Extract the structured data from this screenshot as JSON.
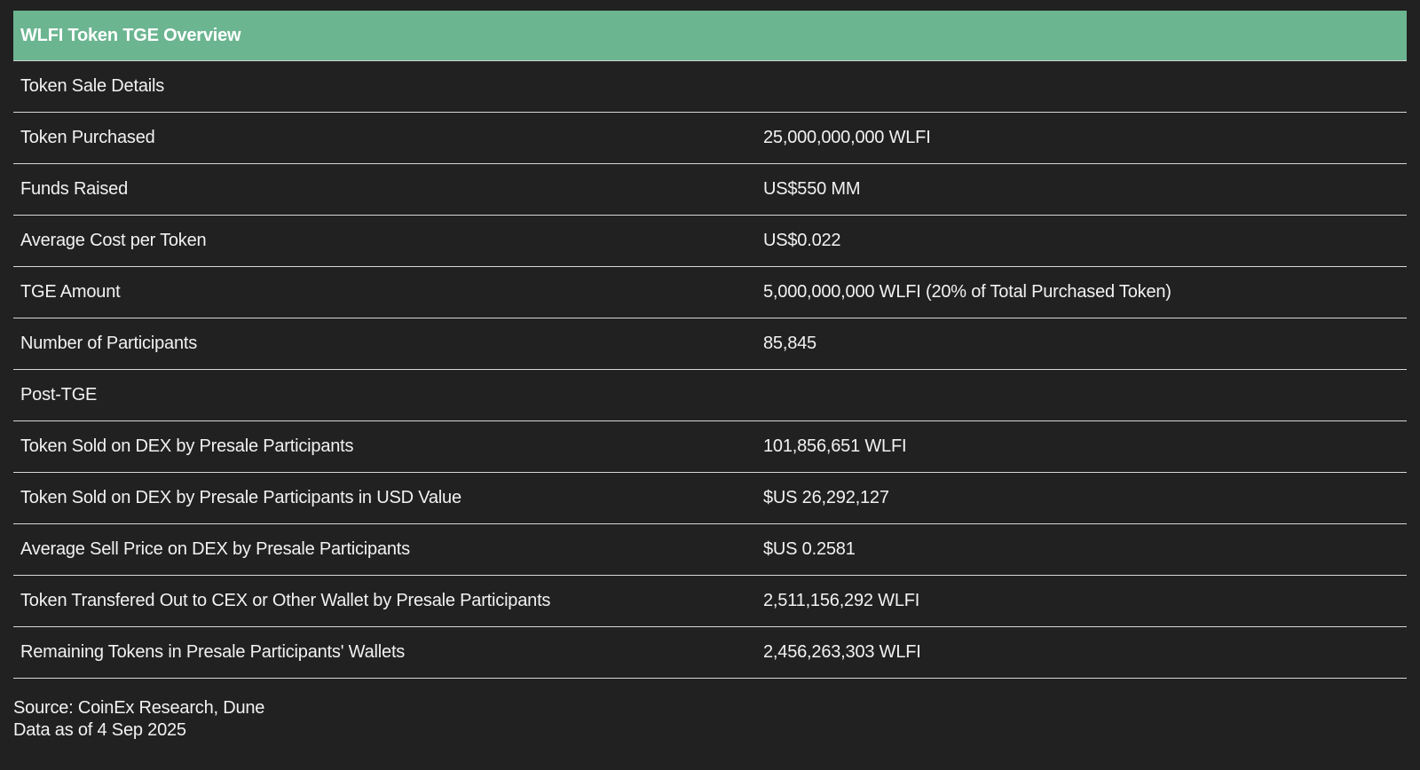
{
  "table": {
    "title": "WLFI Token TGE Overview",
    "rows": [
      {
        "label": "Token Sale Details",
        "value": ""
      },
      {
        "label": "Token Purchased",
        "value": "25,000,000,000 WLFI"
      },
      {
        "label": "Funds Raised",
        "value": "US$550 MM"
      },
      {
        "label": "Average Cost per Token",
        "value": "US$0.022"
      },
      {
        "label": "TGE Amount",
        "value": "5,000,000,000 WLFI (20% of Total Purchased Token)"
      },
      {
        "label": "Number of Participants",
        "value": "85,845"
      },
      {
        "label": "Post-TGE",
        "value": ""
      },
      {
        "label": "Token Sold on DEX by Presale Participants",
        "value": "101,856,651 WLFI"
      },
      {
        "label": "Token Sold on DEX by Presale Participants in USD Value",
        "value": "$US 26,292,127"
      },
      {
        "label": "Average Sell Price on DEX by Presale Participants",
        "value": "$US 0.2581"
      },
      {
        "label": "Token Transfered Out to CEX or Other Wallet by Presale Participants",
        "value": "2,511,156,292 WLFI"
      },
      {
        "label": "Remaining Tokens in Presale Participants' Wallets",
        "value": "2,456,263,303 WLFI"
      }
    ]
  },
  "footer": {
    "source": "Source: CoinEx Research, Dune",
    "date": "Data as of 4 Sep 2025"
  },
  "colors": {
    "background": "#212121",
    "header_bg": "#6bb591",
    "text": "#f2f2f2"
  }
}
